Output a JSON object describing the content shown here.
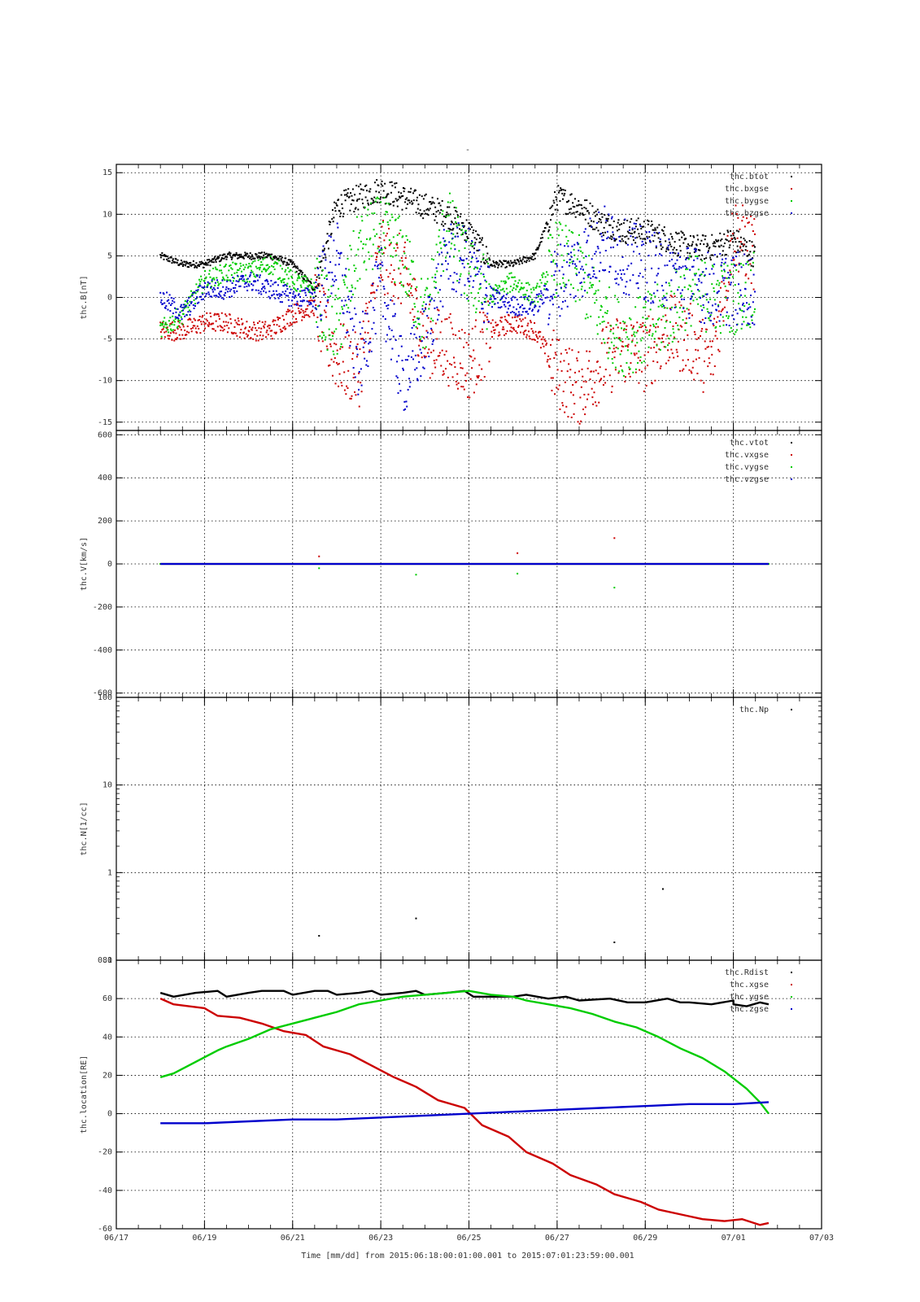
{
  "figure_title": "-",
  "x_axis": {
    "tick_labels": [
      "06/17",
      "06/19",
      "06/21",
      "06/23",
      "06/25",
      "06/27",
      "06/29",
      "07/01",
      "07/03"
    ],
    "title": "Time [mm/dd]  from 2015:06:18:00:01:00.001  to  2015:07:01:23:59:00.001"
  },
  "colors": {
    "black": "#000000",
    "red": "#cc0000",
    "green": "#00cc00",
    "blue": "#0000cc"
  },
  "chart_data": [
    {
      "type": "scatter",
      "ylabel": "thc.B[nT]",
      "xlim": [
        "06/17",
        "07/03"
      ],
      "ylim": [
        -16,
        16
      ],
      "yscale": "linear",
      "yticks": [
        -15,
        -10,
        -5,
        0,
        5,
        10,
        15
      ],
      "grid": true,
      "legend_position": "top-right",
      "series": [
        {
          "name": "thc.btot",
          "color": "#000000",
          "x": [
            "06/18",
            "06/18.5",
            "06/19",
            "06/19.5",
            "06/20",
            "06/20.5",
            "06/21",
            "06/21.5",
            "06/22",
            "06/22.5",
            "06/23",
            "06/23.5",
            "06/24",
            "06/24.5",
            "06/25",
            "06/25.5",
            "06/26",
            "06/26.5",
            "06/27",
            "06/27.5",
            "06/28",
            "06/28.5",
            "06/29",
            "06/29.5",
            "06/30",
            "06/30.5",
            "07/01",
            "07/01.5"
          ],
          "y": [
            5,
            4,
            4,
            5,
            5,
            5,
            4,
            1,
            11,
            12,
            13,
            12,
            11,
            10,
            8,
            4,
            4,
            5,
            12,
            11,
            9,
            8,
            8,
            7,
            6,
            6,
            7,
            5
          ]
        },
        {
          "name": "thc.bxgse",
          "color": "#cc0000",
          "x": [
            "06/18",
            "06/18.5",
            "06/19",
            "06/19.5",
            "06/20",
            "06/20.5",
            "06/21",
            "06/21.5",
            "06/22",
            "06/22.5",
            "06/23",
            "06/23.5",
            "06/24",
            "06/24.5",
            "06/25",
            "06/25.5",
            "06/26",
            "06/26.5",
            "06/27",
            "06/27.5",
            "06/28",
            "06/28.5",
            "06/29",
            "06/29.5",
            "06/30",
            "06/30.5",
            "07/01",
            "07/01.5"
          ],
          "y": [
            -4,
            -4,
            -3,
            -3,
            -4,
            -4,
            -2,
            -1,
            -7,
            -9,
            5,
            3,
            -5,
            -6,
            -8,
            -4,
            -3,
            -4,
            -9,
            -11,
            -8,
            -6,
            -7,
            -4,
            -5,
            -8,
            8,
            5
          ]
        },
        {
          "name": "thc.bygse",
          "color": "#00cc00",
          "x": [
            "06/18",
            "06/18.5",
            "06/19",
            "06/19.5",
            "06/20",
            "06/20.5",
            "06/21",
            "06/21.5",
            "06/22",
            "06/22.5",
            "06/23",
            "06/23.5",
            "06/24",
            "06/24.5",
            "06/25",
            "06/25.5",
            "06/26",
            "06/26.5",
            "06/27",
            "06/27.5",
            "06/28",
            "06/28.5",
            "06/29",
            "06/29.5",
            "06/30",
            "06/30.5",
            "07/01",
            "07/01.5"
          ],
          "y": [
            -4,
            -2,
            2,
            3,
            3,
            4,
            2,
            1,
            -4,
            6,
            8,
            5,
            -3,
            9,
            3,
            0,
            2,
            0,
            5,
            3,
            -2,
            -5,
            -4,
            -2,
            1,
            0,
            0,
            1
          ]
        },
        {
          "name": "thc.bzgse",
          "color": "#0000cc",
          "x": [
            "06/18",
            "06/18.5",
            "06/19",
            "06/19.5",
            "06/20",
            "06/20.5",
            "06/21",
            "06/21.5",
            "06/22",
            "06/22.5",
            "06/23",
            "06/23.5",
            "06/24",
            "06/24.5",
            "06/25",
            "06/25.5",
            "06/26",
            "06/26.5",
            "06/27",
            "06/27.5",
            "06/28",
            "06/28.5",
            "06/29",
            "06/29.5",
            "06/30",
            "06/30.5",
            "07/01",
            "07/01.5"
          ],
          "y": [
            0,
            -2,
            1,
            1,
            2,
            1,
            0,
            0,
            5,
            -8,
            2,
            -10,
            -5,
            5,
            4,
            0,
            -1,
            -1,
            2,
            4,
            7,
            5,
            4,
            3,
            2,
            1,
            1,
            1
          ]
        }
      ]
    },
    {
      "type": "scatter",
      "ylabel": "thc.V[km/s]",
      "xlim": [
        "06/17",
        "07/03"
      ],
      "ylim": [
        -620,
        620
      ],
      "yscale": "linear",
      "yticks": [
        -600,
        -400,
        -200,
        0,
        200,
        400,
        600
      ],
      "grid": true,
      "legend_position": "top-right",
      "series": [
        {
          "name": "thc.vtot",
          "color": "#000000",
          "x": [
            "06/18",
            "07/01.8"
          ],
          "y": [
            0,
            0
          ]
        },
        {
          "name": "thc.vxgse",
          "color": "#cc0000",
          "x": [
            "06/18",
            "06/21.6",
            "06/26.1",
            "06/28.3",
            "07/01.8"
          ],
          "y": [
            0,
            35,
            50,
            120,
            0
          ]
        },
        {
          "name": "thc.vygse",
          "color": "#00cc00",
          "x": [
            "06/18",
            "06/21.6",
            "06/23.8",
            "06/26.1",
            "06/28.3",
            "07/01.8"
          ],
          "y": [
            0,
            -20,
            -50,
            -45,
            -110,
            0
          ]
        },
        {
          "name": "thc.vzgse",
          "color": "#0000cc",
          "x": [
            "06/18",
            "07/01.8"
          ],
          "y": [
            0,
            0
          ]
        }
      ]
    },
    {
      "type": "scatter",
      "ylabel": "thc.N[1/cc]",
      "xlim": [
        "06/17",
        "07/03"
      ],
      "ylim": [
        0.1,
        100
      ],
      "yscale": "log",
      "yticks": [
        0.1,
        1,
        10,
        100
      ],
      "ytick_labels": [
        "0.1",
        "1",
        "10",
        "100"
      ],
      "grid": true,
      "legend_position": "top-right",
      "series": [
        {
          "name": "thc.Np",
          "color": "#000000",
          "x": [
            "06/21.6",
            "06/23.8",
            "06/28.3",
            "06/29.4"
          ],
          "y": [
            0.19,
            0.3,
            0.16,
            0.65
          ]
        }
      ]
    },
    {
      "type": "line",
      "ylabel": "thc.location[RE]",
      "xlim": [
        "06/17",
        "07/03"
      ],
      "ylim": [
        -60,
        80
      ],
      "yscale": "linear",
      "yticks": [
        -60,
        -40,
        -20,
        0,
        20,
        40,
        60,
        80
      ],
      "grid": true,
      "legend_position": "top-right",
      "series": [
        {
          "name": "thc.Rdist",
          "color": "#000000",
          "x": [
            "06/18",
            "06/18.3",
            "06/18.8",
            "06/19.3",
            "06/19.5",
            "06/20",
            "06/20.3",
            "06/20.8",
            "06/21",
            "06/21.5",
            "06/21.8",
            "06/22",
            "06/22.5",
            "06/22.8",
            "06/23",
            "06/23.5",
            "06/23.8",
            "06/24",
            "06/24.5",
            "06/24.9",
            "06/25.1",
            "06/25.5",
            "06/26",
            "06/26.3",
            "06/26.8",
            "06/27.2",
            "06/27.5",
            "06/28.2",
            "06/28.6",
            "06/29",
            "06/29.5",
            "06/29.8",
            "06/30",
            "06/30.5",
            "06/31",
            "07/01",
            "07/01.3",
            "07/01.6",
            "07/01.8"
          ],
          "y": [
            63,
            61,
            63,
            64,
            61,
            63,
            64,
            64,
            62,
            64,
            64,
            62,
            63,
            64,
            62,
            63,
            64,
            62,
            63,
            64,
            61,
            61,
            61,
            62,
            60,
            61,
            59,
            60,
            58,
            58,
            60,
            58,
            58,
            57,
            59,
            57,
            56,
            58,
            57
          ]
        },
        {
          "name": "thc.xgse",
          "color": "#cc0000",
          "x": [
            "06/18",
            "06/18.3",
            "06/19",
            "06/19.3",
            "06/19.8",
            "06/20.3",
            "06/20.8",
            "06/21.3",
            "06/21.7",
            "06/22.3",
            "06/22.8",
            "06/23.3",
            "06/23.8",
            "06/24.3",
            "06/24.9",
            "06/25.3",
            "06/25.9",
            "06/26.3",
            "06/26.9",
            "06/27.3",
            "06/27.9",
            "06/28.3",
            "06/28.9",
            "06/29.3",
            "06/29.9",
            "06/30.3",
            "06/30.8",
            "07/01.2",
            "07/01.6",
            "07/01.8"
          ],
          "y": [
            60,
            57,
            55,
            51,
            50,
            47,
            43,
            41,
            35,
            31,
            25,
            19,
            14,
            7,
            3,
            -6,
            -12,
            -20,
            -26,
            -32,
            -37,
            -42,
            -46,
            -50,
            -53,
            -55,
            -56,
            -55,
            -58,
            -57
          ]
        },
        {
          "name": "thc.ygse",
          "color": "#00cc00",
          "x": [
            "06/18",
            "06/18.3",
            "06/18.8",
            "06/19.3",
            "06/19.5",
            "06/20",
            "06/20.5",
            "06/21",
            "06/21.5",
            "06/22",
            "06/22.5",
            "06/23",
            "06/23.5",
            "06/24",
            "06/24.5",
            "06/25",
            "06/25.5",
            "06/26",
            "06/26.3",
            "06/26.8",
            "06/27.3",
            "06/27.8",
            "06/28.3",
            "06/28.8",
            "06/29.3",
            "06/29.8",
            "06/30.3",
            "06/30.8",
            "07/01.3",
            "07/01.6",
            "07/01.8"
          ],
          "y": [
            19,
            21,
            27,
            33,
            35,
            39,
            44,
            47,
            50,
            53,
            57,
            59,
            61,
            62,
            63,
            64,
            62,
            61,
            59,
            57,
            55,
            52,
            48,
            45,
            40,
            34,
            29,
            22,
            13,
            6,
            0
          ]
        },
        {
          "name": "thc.zgse",
          "color": "#0000cc",
          "x": [
            "06/18",
            "06/19",
            "06/20",
            "06/21",
            "06/22",
            "06/23",
            "06/24",
            "06/25",
            "06/26",
            "06/27",
            "06/28",
            "06/29",
            "06/30",
            "07/01",
            "07/01.8"
          ],
          "y": [
            -5,
            -5,
            -4,
            -3,
            -3,
            -2,
            -1,
            0,
            1,
            2,
            3,
            4,
            5,
            5,
            6
          ]
        }
      ]
    }
  ]
}
